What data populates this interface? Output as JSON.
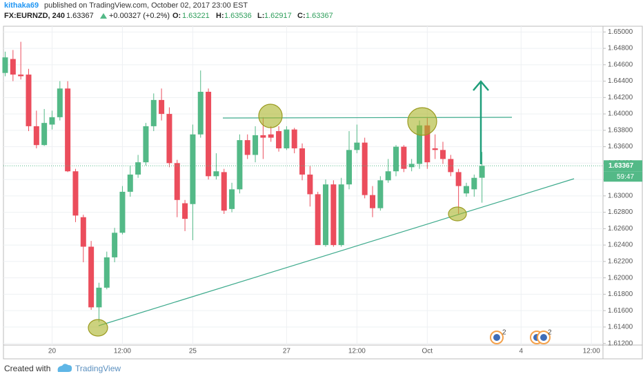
{
  "header": {
    "author": "kithaka69",
    "published": "published on TradingView.com, October 02, 2017 23:00 EST"
  },
  "footer": {
    "created": "Created with",
    "brand": "TradingView"
  },
  "chart_data": {
    "type": "candlestick",
    "symbol": "FX:EURNZD, 240",
    "change": "+0.00327 (+0.2%)",
    "ohlc_labels": {
      "open": "O:",
      "high": "H:",
      "low": "L:",
      "close": "C:"
    },
    "countdown": "59:47",
    "events": [
      "2",
      "2"
    ],
    "up_color": "#53b987",
    "down_color": "#eb4d5c",
    "grid": true,
    "categories": [
      null,
      null,
      null,
      null,
      null,
      null,
      "20",
      null,
      null,
      null,
      null,
      null,
      null,
      null,
      null,
      "12:00",
      null,
      null,
      null,
      null,
      null,
      null,
      null,
      null,
      "25",
      null,
      null,
      null,
      null,
      null,
      null,
      null,
      null,
      null,
      null,
      null,
      "27",
      null,
      null,
      null,
      null,
      null,
      null,
      null,
      null,
      "12:00",
      null,
      null,
      null,
      null,
      null,
      null,
      null,
      null,
      "Oct",
      null,
      null,
      null,
      null,
      null,
      null,
      null,
      null,
      null,
      null,
      null,
      "4",
      null,
      null,
      null,
      null,
      null,
      null,
      null,
      null,
      "12:00",
      null
    ],
    "open": [
      1.645,
      1.6467,
      1.6448,
      1.6448,
      1.6385,
      1.6362,
      1.6387,
      1.6396,
      1.6431,
      1.633,
      1.6274,
      1.6238,
      1.6164,
      1.6188,
      1.6225,
      1.6255,
      1.6305,
      1.6326,
      1.6341,
      1.6385,
      1.6417,
      1.64,
      1.634,
      1.6291,
      1.629,
      1.6375,
      1.6427,
      1.6324,
      1.6329,
      1.6284,
      1.6308,
      1.6368,
      1.635,
      1.6374,
      1.6375,
      1.6379,
      1.6358,
      1.6381,
      1.6358,
      1.6326,
      1.6302,
      1.624,
      1.6314,
      1.624,
      1.6314,
      1.6356,
      1.6365,
      1.6301,
      1.6285,
      1.6319,
      1.633,
      1.636,
      1.6335,
      1.6339,
      1.6386,
      1.6358,
      1.6356,
      1.6345,
      1.6329,
      1.6303,
      1.6308,
      1.63221,
      null,
      null,
      null,
      null,
      null,
      null,
      null,
      null,
      null,
      null,
      null,
      null,
      null,
      null,
      null
    ],
    "high": [
      1.6476,
      1.6478,
      1.6488,
      1.6455,
      1.6404,
      1.6406,
      1.6404,
      1.644,
      1.644,
      1.6333,
      1.6277,
      1.6245,
      1.6194,
      1.6232,
      1.6261,
      1.6312,
      1.6337,
      1.635,
      1.6389,
      1.6425,
      1.6431,
      1.6408,
      1.6344,
      1.6295,
      1.6387,
      1.6453,
      1.6431,
      1.6352,
      1.6333,
      1.6316,
      1.6375,
      1.6375,
      1.6385,
      1.6396,
      1.6385,
      1.6385,
      1.6385,
      1.6383,
      1.6364,
      1.6337,
      1.6305,
      1.632,
      1.6319,
      1.6322,
      1.6379,
      1.6387,
      1.6371,
      1.6312,
      1.6324,
      1.6345,
      1.6362,
      1.6362,
      1.6345,
      1.6392,
      1.6396,
      1.6375,
      1.6366,
      1.635,
      1.6333,
      1.6316,
      1.6326,
      1.63536,
      null,
      null,
      null,
      null,
      null,
      null,
      null,
      null,
      null,
      null,
      null,
      null,
      null,
      null,
      null
    ],
    "low": [
      1.6446,
      1.644,
      1.6442,
      1.6379,
      1.6358,
      1.6361,
      1.6381,
      1.6392,
      1.6329,
      1.6268,
      1.6219,
      1.6161,
      1.6146,
      1.6186,
      1.6219,
      1.6253,
      1.6299,
      1.6322,
      1.6337,
      1.6379,
      1.6392,
      1.6335,
      1.6274,
      1.6257,
      1.6246,
      1.6371,
      1.632,
      1.632,
      1.6278,
      1.628,
      1.6303,
      1.6345,
      1.6341,
      1.6345,
      1.6366,
      1.6354,
      1.6356,
      1.6352,
      1.6319,
      1.6287,
      1.624,
      1.6238,
      1.6238,
      1.6238,
      1.6308,
      1.6352,
      1.6297,
      1.6274,
      1.6282,
      1.6316,
      1.6324,
      1.6329,
      1.633,
      1.6333,
      1.6333,
      1.6345,
      1.6339,
      1.6324,
      1.6278,
      1.6299,
      1.6299,
      1.62917,
      null,
      null,
      null,
      null,
      null,
      null,
      null,
      null,
      null,
      null,
      null,
      null,
      null,
      null,
      null
    ],
    "close": [
      1.6469,
      1.6448,
      1.6446,
      1.6385,
      1.6362,
      1.6389,
      1.6396,
      1.6431,
      1.633,
      1.6276,
      1.6238,
      1.6164,
      1.6188,
      1.6225,
      1.6255,
      1.6305,
      1.6326,
      1.6341,
      1.6385,
      1.6417,
      1.64,
      1.634,
      1.6295,
      1.6272,
      1.6375,
      1.6427,
      1.6324,
      1.633,
      1.6282,
      1.6308,
      1.6368,
      1.635,
      1.6374,
      1.6371,
      1.6371,
      1.6358,
      1.6381,
      1.6358,
      1.6326,
      1.6302,
      1.624,
      1.6314,
      1.624,
      1.6314,
      1.6356,
      1.6365,
      1.6301,
      1.6285,
      1.6319,
      1.633,
      1.636,
      1.6333,
      1.6339,
      1.6386,
      1.6341,
      1.6356,
      1.6345,
      1.6329,
      1.6312,
      1.6312,
      1.6322,
      1.63367,
      null,
      null,
      null,
      null,
      null,
      null,
      null,
      null,
      null,
      null,
      null,
      null,
      null,
      null,
      null
    ],
    "ylim": [
      1.6118,
      1.6507
    ],
    "yticks": [
      {
        "value": 1.612,
        "label": "1.61200"
      },
      {
        "value": 1.614,
        "label": "1.61400"
      },
      {
        "value": 1.616,
        "label": "1.61600"
      },
      {
        "value": 1.618,
        "label": "1.61800"
      },
      {
        "value": 1.62,
        "label": "1.62000"
      },
      {
        "value": 1.622,
        "label": "1.62200"
      },
      {
        "value": 1.624,
        "label": "1.62400"
      },
      {
        "value": 1.626,
        "label": "1.62600"
      },
      {
        "value": 1.628,
        "label": "1.62800"
      },
      {
        "value": 1.63,
        "label": "1.63000"
      },
      {
        "value": 1.632,
        "label": "1.63200"
      },
      {
        "value": 1.634,
        "label": "1.63400"
      },
      {
        "value": 1.636,
        "label": "1.63600"
      },
      {
        "value": 1.638,
        "label": "1.63800"
      },
      {
        "value": 1.64,
        "label": "1.64000"
      },
      {
        "value": 1.642,
        "label": "1.64200"
      },
      {
        "value": 1.644,
        "label": "1.64400"
      },
      {
        "value": 1.646,
        "label": "1.64600"
      },
      {
        "value": 1.648,
        "label": "1.64800"
      },
      {
        "value": 1.65,
        "label": "1.65000"
      }
    ]
  }
}
